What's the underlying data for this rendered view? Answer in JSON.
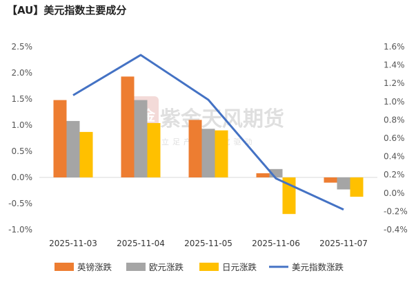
{
  "title": "【AU】美元指数主要成分",
  "watermark": {
    "logo_text": "紫金",
    "name": "紫金天风期货",
    "slogan": "立足产业 研究驱动"
  },
  "chart_data": {
    "type": "bar+line",
    "categories": [
      "2025-11-03",
      "2025-11-04",
      "2025-11-05",
      "2025-11-06",
      "2025-11-07"
    ],
    "left_axis": {
      "ticks": [
        "2.5%",
        "2.0%",
        "1.5%",
        "1.0%",
        "0.5%",
        "0.0%",
        "-0.5%",
        "-1.0%"
      ],
      "ylim": [
        -1.0,
        2.5
      ]
    },
    "right_axis": {
      "ticks": [
        "1.6%",
        "1.4%",
        "1.2%",
        "1.0%",
        "0.8%",
        "0.6%",
        "0.4%",
        "0.2%",
        "0.0%",
        "-0.2%",
        "-0.4%"
      ],
      "ylim": [
        -0.4,
        1.6
      ]
    },
    "series": [
      {
        "name": "英镑涨跌",
        "type": "bar",
        "axis": "left",
        "color": "#ED7D31",
        "values": [
          1.48,
          1.93,
          1.1,
          0.08,
          -0.1
        ]
      },
      {
        "name": "欧元涨跌",
        "type": "bar",
        "axis": "left",
        "color": "#A5A5A5",
        "values": [
          1.08,
          1.48,
          0.93,
          0.16,
          -0.23
        ]
      },
      {
        "name": "日元涨跌",
        "type": "bar",
        "axis": "left",
        "color": "#FFC000",
        "values": [
          0.87,
          1.04,
          0.9,
          -0.7,
          -0.37
        ]
      },
      {
        "name": "美元指数涨跌",
        "type": "line",
        "axis": "right",
        "color": "#4472C4",
        "values": [
          1.07,
          1.51,
          1.02,
          0.16,
          -0.18
        ]
      }
    ],
    "legend_position": "bottom",
    "grid": false
  }
}
